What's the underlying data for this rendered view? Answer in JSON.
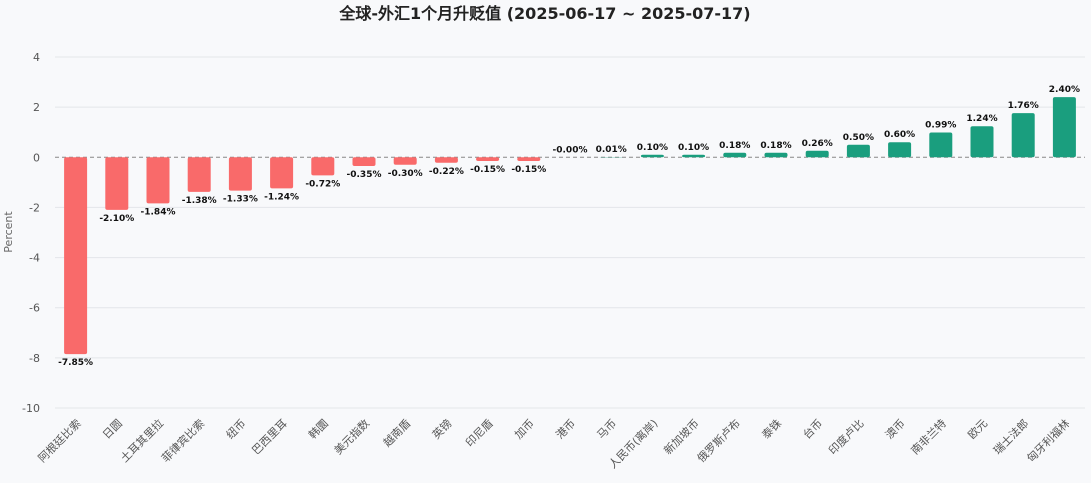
{
  "chart_data": {
    "type": "bar",
    "title": "全球-外汇1个月升贬值 (2025-06-17 ~ 2025-07-17)",
    "xlabel": "",
    "ylabel": "Percent",
    "ylim": [
      -10,
      4
    ],
    "yticks": [
      4,
      2,
      0,
      -2,
      -4,
      -6,
      -8,
      -10
    ],
    "grid": true,
    "colors": {
      "negative": "#f96a6a",
      "positive": "#1a9e7e"
    },
    "categories": [
      "阿根廷比索",
      "日圆",
      "土耳其里拉",
      "菲律宾比索",
      "纽币",
      "巴西里耳",
      "韩圜",
      "美元指数",
      "越南盾",
      "英镑",
      "印尼盾",
      "加币",
      "港币",
      "马币",
      "人民币(离岸)",
      "新加坡币",
      "俄罗斯卢布",
      "泰铢",
      "台币",
      "印度卢比",
      "澳币",
      "南非兰特",
      "欧元",
      "瑞士法郎",
      "匈牙利福林"
    ],
    "values": [
      -7.85,
      -2.1,
      -1.84,
      -1.38,
      -1.33,
      -1.24,
      -0.72,
      -0.35,
      -0.3,
      -0.22,
      -0.15,
      -0.15,
      -0.0,
      0.01,
      0.1,
      0.1,
      0.18,
      0.18,
      0.26,
      0.5,
      0.6,
      0.99,
      1.24,
      1.76,
      2.4
    ],
    "value_labels": [
      "-7.85%",
      "-2.10%",
      "-1.84%",
      "-1.38%",
      "-1.33%",
      "-1.24%",
      "-0.72%",
      "-0.35%",
      "-0.30%",
      "-0.22%",
      "-0.15%",
      "-0.15%",
      "-0.00%",
      "0.01%",
      "0.10%",
      "0.10%",
      "0.18%",
      "0.18%",
      "0.26%",
      "0.50%",
      "0.60%",
      "0.99%",
      "1.24%",
      "1.76%",
      "2.40%"
    ]
  }
}
